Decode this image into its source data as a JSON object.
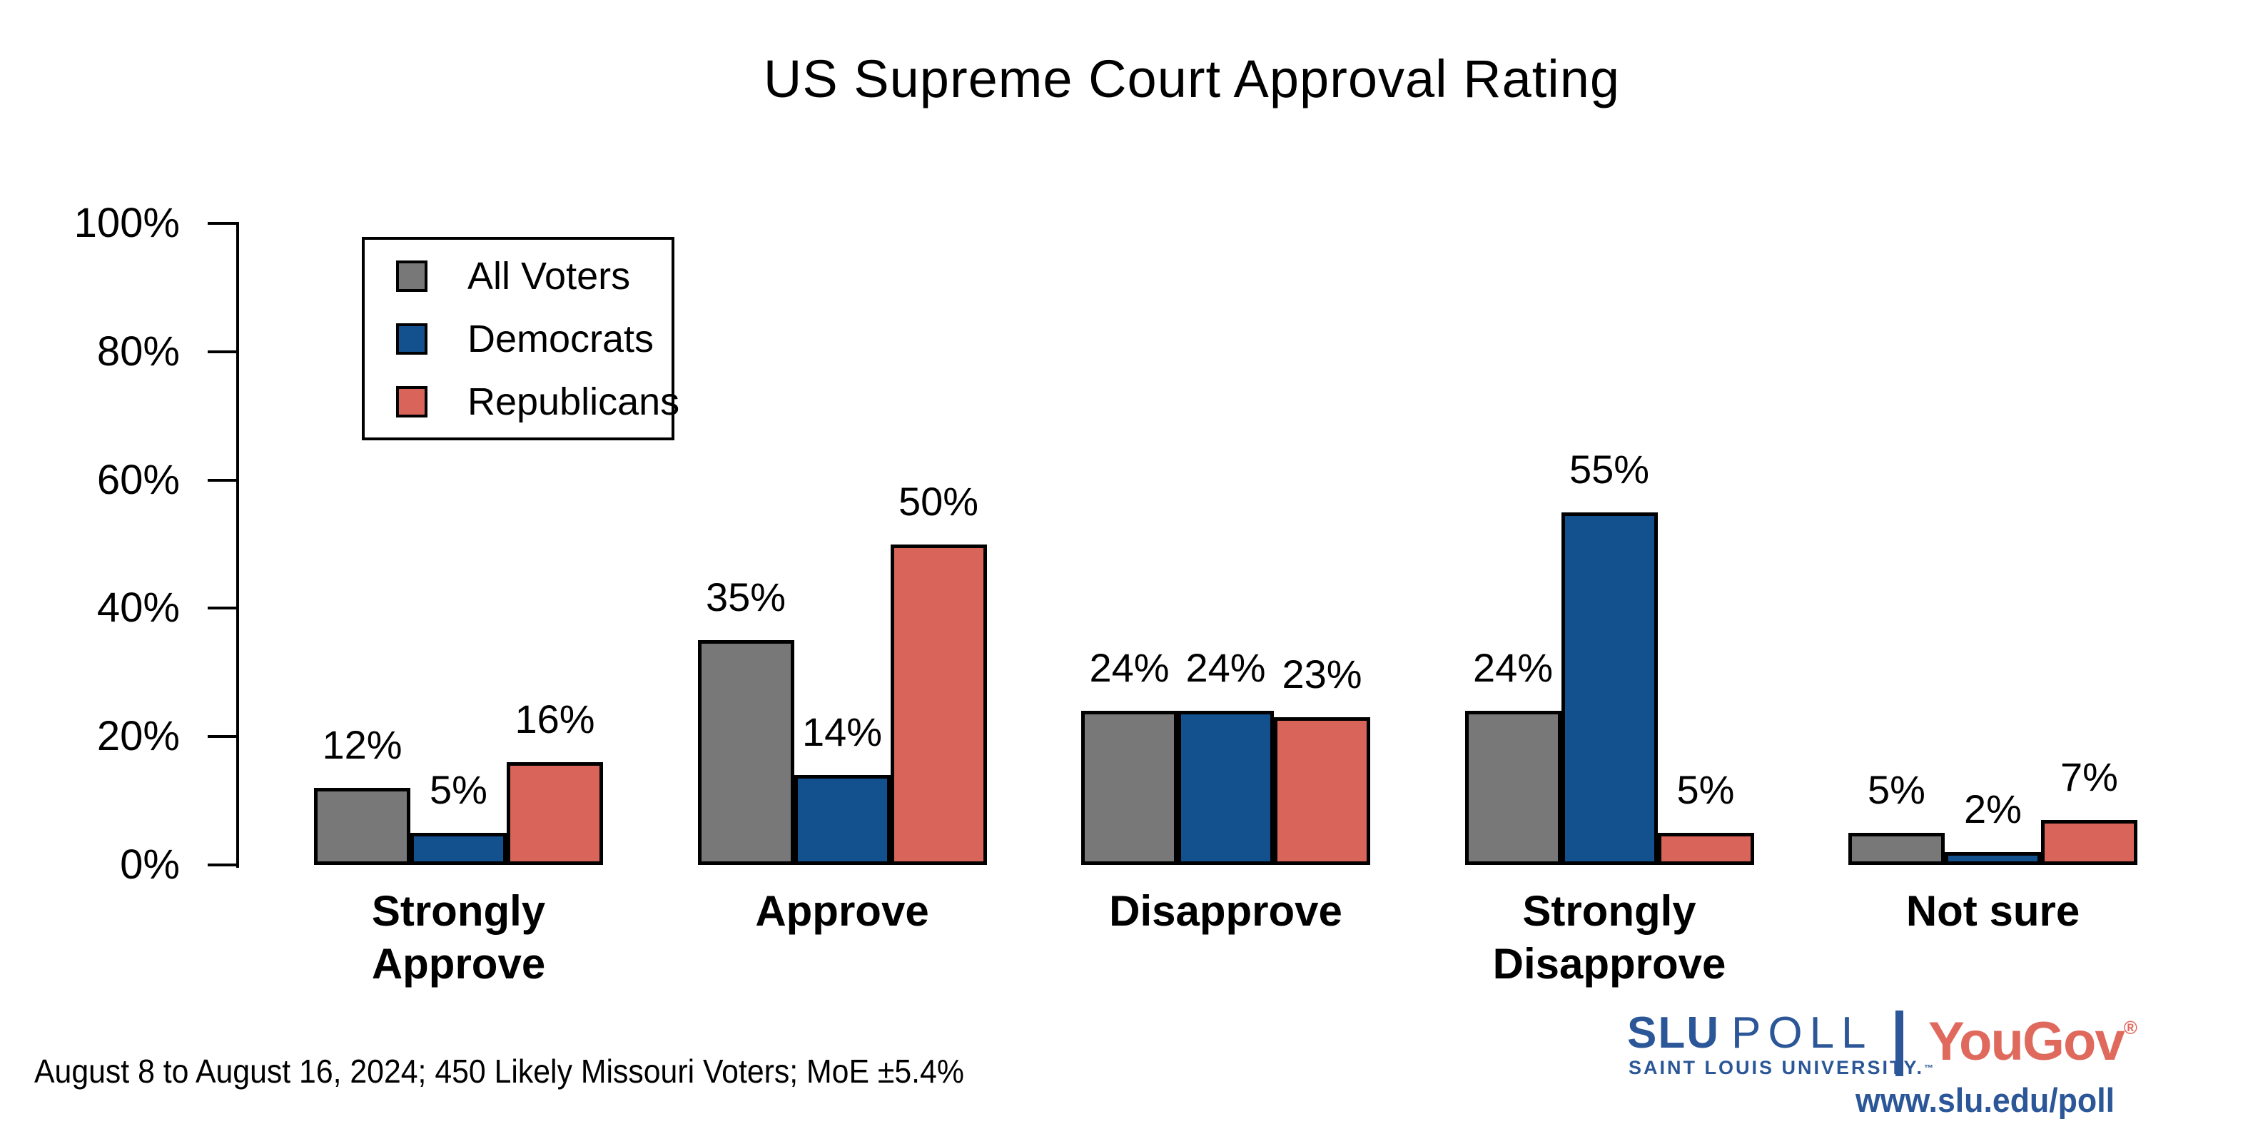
{
  "chart_data": {
    "type": "bar",
    "title": "US Supreme Court Approval Rating",
    "categories": [
      "Strongly\nApprove",
      "Approve",
      "Disapprove",
      "Strongly\nDisapprove",
      "Not sure"
    ],
    "series": [
      {
        "name": "All Voters",
        "color": "#787878",
        "values": [
          12,
          35,
          24,
          24,
          5
        ]
      },
      {
        "name": "Democrats",
        "color": "#12508e",
        "values": [
          5,
          14,
          24,
          55,
          2
        ]
      },
      {
        "name": "Republicans",
        "color": "#d9655a",
        "values": [
          16,
          50,
          23,
          5,
          7
        ]
      }
    ],
    "value_suffix": "%",
    "xlabel": "",
    "ylabel": "",
    "ylim": [
      0,
      100
    ],
    "y_ticks": [
      "0%",
      "20%",
      "40%",
      "60%",
      "80%",
      "100%"
    ],
    "grid": false,
    "bar_outline_color": "#000000",
    "legend_position": "upper-left"
  },
  "footer": {
    "note": "August 8 to August 16, 2024; 450 Likely Missouri Voters; MoE ±5.4%"
  },
  "branding": {
    "slu_poll": "SLU",
    "poll_word": "POLL",
    "slu_university": "SAINT LOUIS UNIVERSITY.",
    "trademark": "™",
    "yougov": "YouGov",
    "registered": "®",
    "url": "www.slu.edu/poll",
    "slu_blue": "#2b5697",
    "yougov_red": "#e0695e"
  }
}
